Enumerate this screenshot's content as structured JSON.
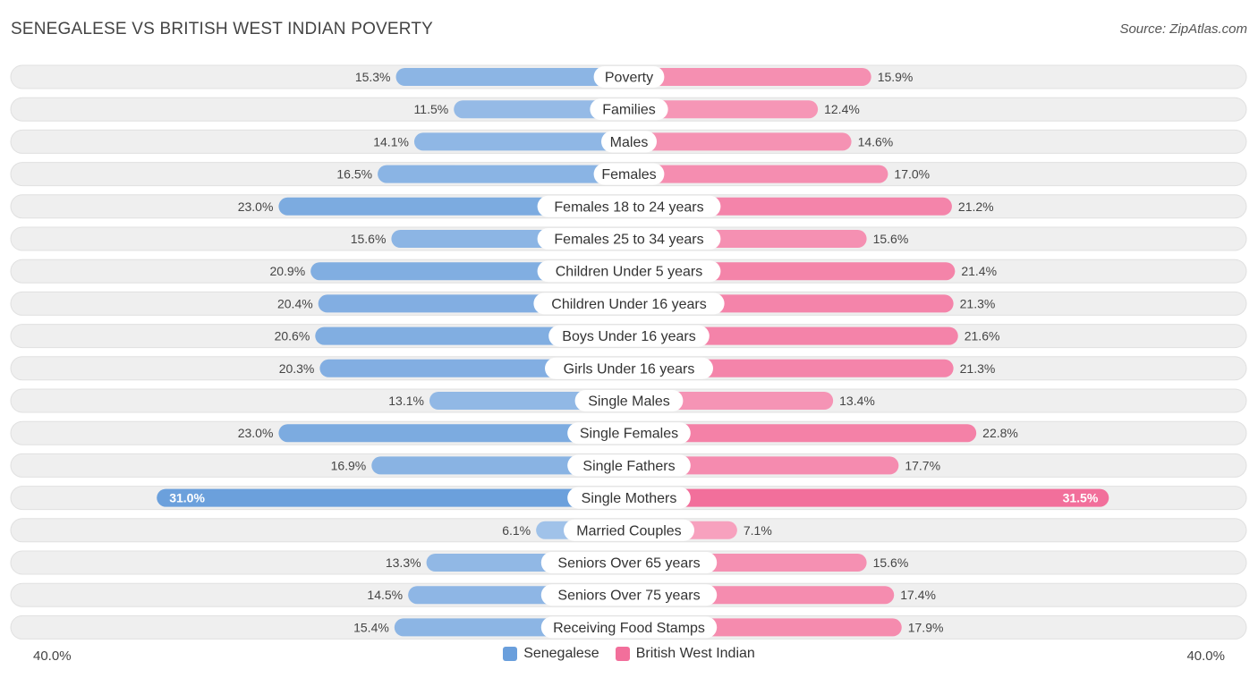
{
  "header": {
    "title": "SENEGALESE VS BRITISH WEST INDIAN POVERTY",
    "source": "Source: ZipAtlas.com"
  },
  "axis": {
    "left_label": "40.0%",
    "right_label": "40.0%"
  },
  "legend": [
    {
      "name": "Senegalese",
      "color": "#6a9fdc"
    },
    {
      "name": "British West Indian",
      "color": "#f26f9b"
    }
  ],
  "chart_data": {
    "type": "bar",
    "orientation": "horizontal-diverging",
    "title": "SENEGALESE VS BRITISH WEST INDIAN POVERTY",
    "xlim": [
      0,
      40
    ],
    "unit": "%",
    "categories": [
      "Poverty",
      "Families",
      "Males",
      "Females",
      "Females 18 to 24 years",
      "Females 25 to 34 years",
      "Children Under 5 years",
      "Children Under 16 years",
      "Boys Under 16 years",
      "Girls Under 16 years",
      "Single Males",
      "Single Females",
      "Single Fathers",
      "Single Mothers",
      "Married Couples",
      "Seniors Over 65 years",
      "Seniors Over 75 years",
      "Receiving Food Stamps"
    ],
    "series": [
      {
        "name": "Senegalese",
        "values": [
          15.3,
          11.5,
          14.1,
          16.5,
          23.0,
          15.6,
          20.9,
          20.4,
          20.6,
          20.3,
          13.1,
          23.0,
          16.9,
          31.0,
          6.1,
          13.3,
          14.5,
          15.4
        ],
        "labels": [
          "15.3%",
          "11.5%",
          "14.1%",
          "16.5%",
          "23.0%",
          "15.6%",
          "20.9%",
          "20.4%",
          "20.6%",
          "20.3%",
          "13.1%",
          "23.0%",
          "16.9%",
          "31.0%",
          "6.1%",
          "13.3%",
          "14.5%",
          "15.4%"
        ]
      },
      {
        "name": "British West Indian",
        "values": [
          15.9,
          12.4,
          14.6,
          17.0,
          21.2,
          15.6,
          21.4,
          21.3,
          21.6,
          21.3,
          13.4,
          22.8,
          17.7,
          31.5,
          7.1,
          15.6,
          17.4,
          17.9
        ],
        "labels": [
          "15.9%",
          "12.4%",
          "14.6%",
          "17.0%",
          "21.2%",
          "15.6%",
          "21.4%",
          "21.3%",
          "21.6%",
          "21.3%",
          "13.4%",
          "22.8%",
          "17.7%",
          "31.5%",
          "7.1%",
          "15.6%",
          "17.4%",
          "17.9%"
        ]
      }
    ]
  }
}
